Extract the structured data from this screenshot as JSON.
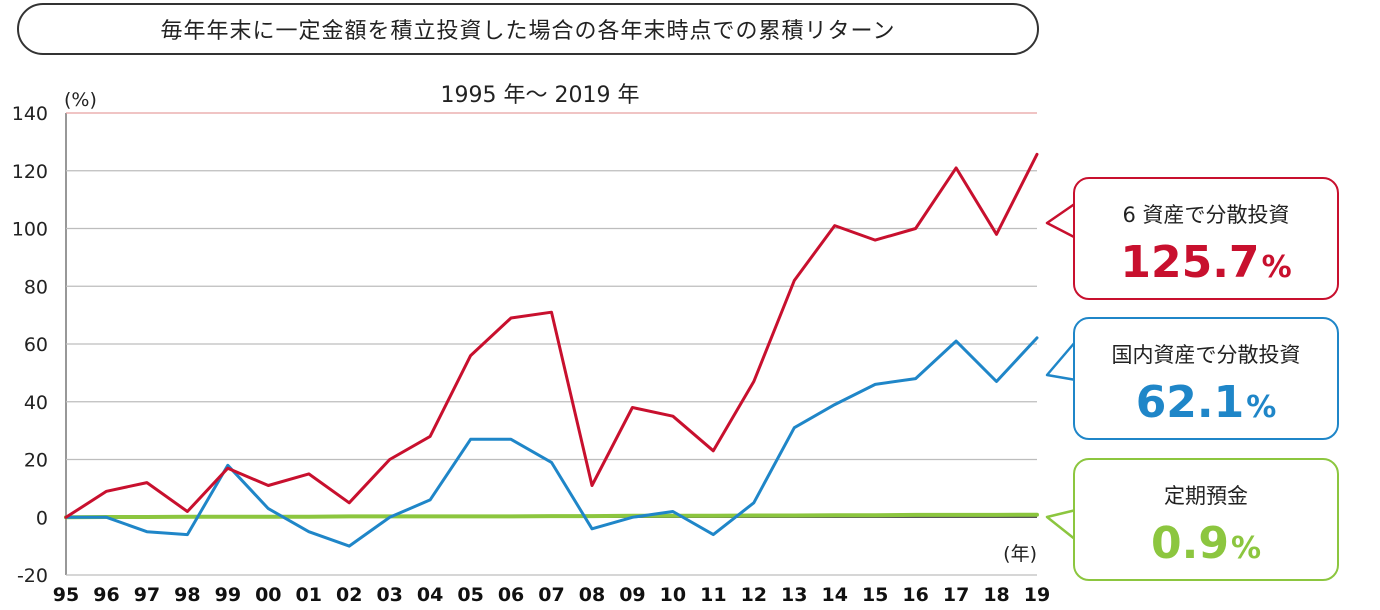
{
  "title": "毎年年末に一定金額を積立投資した場合の各年末時点での累積リターン",
  "subtitle": "1995 年～ 2019 年",
  "colors": {
    "six_asset": "#c8102e",
    "domestic": "#1f86c8",
    "deposit": "#8cc63f",
    "grid": "#bdbdbd"
  },
  "callouts": {
    "six_asset": {
      "label": "6 資産で分散投資",
      "value": "125.7",
      "unit": "%"
    },
    "domestic": {
      "label": "国内資産で分散投資",
      "value": "62.1",
      "unit": "%"
    },
    "deposit": {
      "label": "定期預金",
      "value": "0.9",
      "unit": "%"
    }
  },
  "chart_data": {
    "type": "line",
    "title": "毎年年末に一定金額を積立投資した場合の各年末時点での累積リターン",
    "subtitle": "1995 年～ 2019 年",
    "ylabel": "(%)",
    "xlabel": "(年)",
    "ylim": [
      -20,
      140
    ],
    "yticks": [
      -20,
      0,
      20,
      40,
      60,
      80,
      100,
      120,
      140
    ],
    "grid": true,
    "categories": [
      "95",
      "96",
      "97",
      "98",
      "99",
      "00",
      "01",
      "02",
      "03",
      "04",
      "05",
      "06",
      "07",
      "08",
      "09",
      "10",
      "11",
      "12",
      "13",
      "14",
      "15",
      "16",
      "17",
      "18",
      "19"
    ],
    "series": [
      {
        "name": "6 資産で分散投資",
        "color": "#c8102e",
        "values": [
          0,
          9,
          12,
          2,
          17,
          11,
          15,
          5,
          20,
          28,
          56,
          69,
          71,
          11,
          38,
          35,
          23,
          47,
          82,
          101,
          96,
          100,
          121,
          98,
          125.7
        ]
      },
      {
        "name": "国内資産で分散投資",
        "color": "#1f86c8",
        "values": [
          0,
          0,
          -5,
          -6,
          18,
          3,
          -5,
          -10,
          0,
          6,
          27,
          27,
          19,
          -4,
          0,
          2,
          -6,
          5,
          31,
          39,
          46,
          48,
          61,
          47,
          62.1
        ]
      },
      {
        "name": "定期預金",
        "color": "#8cc63f",
        "values": [
          0,
          0.1,
          0.1,
          0.2,
          0.2,
          0.2,
          0.2,
          0.3,
          0.3,
          0.3,
          0.3,
          0.3,
          0.4,
          0.4,
          0.5,
          0.5,
          0.5,
          0.6,
          0.6,
          0.7,
          0.7,
          0.8,
          0.8,
          0.8,
          0.9
        ]
      }
    ]
  }
}
